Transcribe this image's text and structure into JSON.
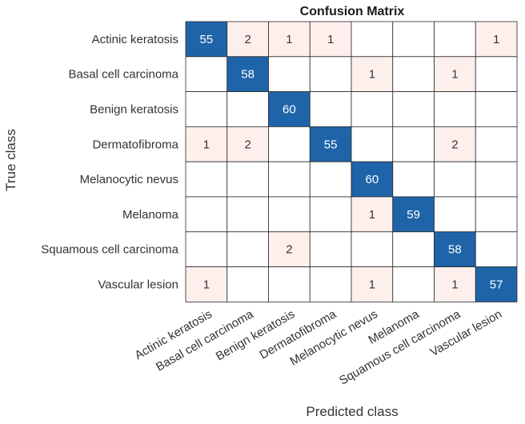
{
  "chart_data": {
    "type": "heatmap",
    "title": "Confusion Matrix",
    "xlabel": "Predicted class",
    "ylabel": "True class",
    "rows": [
      "Actinic keratosis",
      "Basal cell carcinoma",
      "Benign keratosis",
      "Dermatofibroma",
      "Melanocytic nevus",
      "Melanoma",
      "Squamous cell carcinoma",
      "Vascular lesion"
    ],
    "columns": [
      "Actinic keratosis",
      "Basal cell carcinoma",
      "Benign keratosis",
      "Dermatofibroma",
      "Melanocytic nevus",
      "Melanoma",
      "Squamous cell carcinoma",
      "Vascular lesion"
    ],
    "values": [
      [
        55,
        2,
        1,
        1,
        0,
        0,
        0,
        1
      ],
      [
        0,
        58,
        0,
        0,
        1,
        0,
        1,
        0
      ],
      [
        0,
        0,
        60,
        0,
        0,
        0,
        0,
        0
      ],
      [
        1,
        2,
        0,
        55,
        0,
        0,
        2,
        0
      ],
      [
        0,
        0,
        0,
        0,
        60,
        0,
        0,
        0
      ],
      [
        0,
        0,
        0,
        0,
        1,
        59,
        0,
        0
      ],
      [
        0,
        0,
        2,
        0,
        0,
        0,
        58,
        0
      ],
      [
        1,
        0,
        0,
        0,
        1,
        0,
        1,
        57
      ]
    ],
    "zero_cells_blank": true,
    "diagonal_color": "#1f64a9",
    "off_diagonal_color": "#fdf0ec",
    "grid": true
  }
}
